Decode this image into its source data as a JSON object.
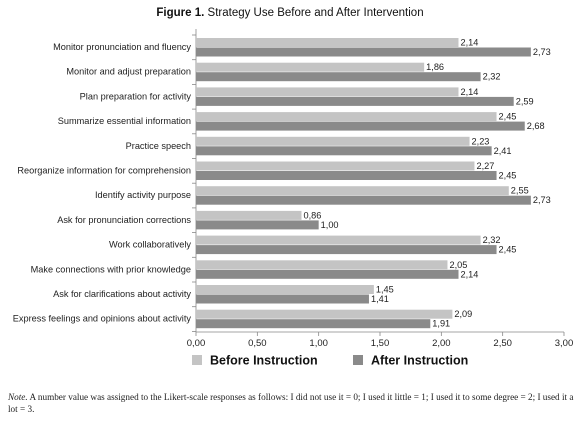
{
  "figure": {
    "label": "Figure 1.",
    "title": "Strategy Use Before and After Intervention",
    "note_label": "Note.",
    "note_text": "A number value was assigned to the Likert-scale responses as follows: I did not use it = 0; I used it little = 1; I used it to some degree = 2; I used it a lot = 3."
  },
  "chart_data": {
    "type": "bar",
    "orientation": "horizontal",
    "categories": [
      "Monitor pronunciation and fluency",
      "Monitor and adjust preparation",
      "Plan preparation for activity",
      "Summarize essential information",
      "Practice speech",
      "Reorganize information for comprehension",
      "Identify activity purpose",
      "Ask for pronunciation corrections",
      "Work collaboratively",
      "Make connections with prior knowledge",
      "Ask for clarifications about activity",
      "Express feelings and opinions about activity"
    ],
    "series": [
      {
        "name": "Before Instruction",
        "color": "#c4c4c4",
        "values": [
          2.14,
          1.86,
          2.14,
          2.45,
          2.23,
          2.27,
          2.55,
          0.86,
          2.32,
          2.05,
          1.45,
          2.09
        ],
        "labels": [
          "2,14",
          "1,86",
          "2,14",
          "2,45",
          "2,23",
          "2,27",
          "2,55",
          "0,86",
          "2,32",
          "2,05",
          "1,45",
          "2,09"
        ]
      },
      {
        "name": "After Instruction",
        "color": "#8a8a8a",
        "values": [
          2.73,
          2.32,
          2.59,
          2.68,
          2.41,
          2.45,
          2.73,
          1.0,
          2.45,
          2.14,
          1.41,
          1.91
        ],
        "labels": [
          "2,73",
          "2,32",
          "2,59",
          "2,68",
          "2,41",
          "2,45",
          "2,73",
          "1,00",
          "2,45",
          "2,14",
          "1,41",
          "1,91"
        ]
      }
    ],
    "xlim": [
      0,
      3
    ],
    "xticks": [
      0,
      0.5,
      1,
      1.5,
      2,
      2.5,
      3
    ],
    "xtick_labels": [
      "0,00",
      "0,50",
      "1,00",
      "1,50",
      "2,00",
      "2,50",
      "3,00"
    ],
    "grid": false,
    "legend_position": "bottom"
  }
}
